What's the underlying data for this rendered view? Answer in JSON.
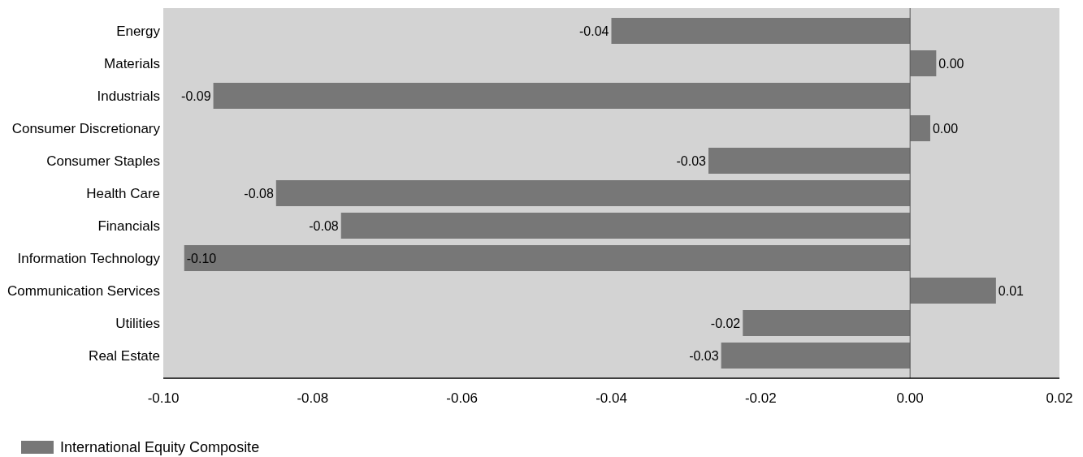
{
  "chart_data": {
    "type": "bar",
    "orientation": "horizontal",
    "categories": [
      "Energy",
      "Materials",
      "Industrials",
      "Consumer Discretionary",
      "Consumer Staples",
      "Health Care",
      "Financials",
      "Information Technology",
      "Communication Services",
      "Utilities",
      "Real Estate"
    ],
    "series": [
      {
        "name": "International Equity Composite",
        "color": "#777777",
        "values": [
          -0.04,
          0.0035,
          -0.0933,
          0.0027,
          -0.027,
          -0.0849,
          -0.0762,
          -0.0972,
          0.0115,
          -0.0224,
          -0.0253
        ],
        "value_labels": [
          "-0.04",
          "0.00",
          "-0.09",
          "0.00",
          "-0.03",
          "-0.08",
          "-0.08",
          "-0.10",
          "0.01",
          "-0.02",
          "-0.03"
        ]
      }
    ],
    "xlim": [
      -0.1,
      0.02
    ],
    "xticks": [
      {
        "value": -0.1,
        "label": "-0.10"
      },
      {
        "value": -0.08,
        "label": "-0.08"
      },
      {
        "value": -0.06,
        "label": "-0.06"
      },
      {
        "value": -0.04,
        "label": "-0.04"
      },
      {
        "value": -0.02,
        "label": "-0.02"
      },
      {
        "value": 0,
        "label": "0.00"
      },
      {
        "value": 0.02,
        "label": "0.02"
      }
    ],
    "ref_lines": [
      {
        "axis": "x",
        "value": 0,
        "color": "#555555"
      }
    ],
    "grid": false,
    "legend": "bottom left"
  }
}
